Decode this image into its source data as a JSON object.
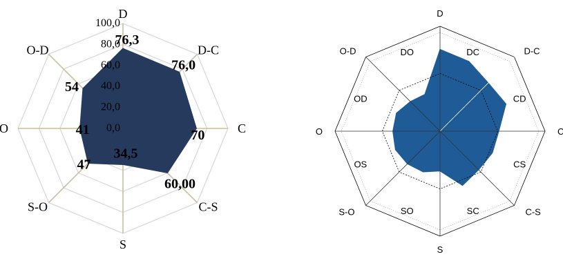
{
  "chart_data": [
    {
      "type": "radar",
      "axes": [
        "D",
        "D-C",
        "C",
        "C-S",
        "S",
        "S-O",
        "O",
        "O-D"
      ],
      "values": [
        76.3,
        76.0,
        70,
        60.0,
        34.5,
        47,
        41,
        54
      ],
      "value_labels": [
        "76,3",
        "76,0",
        "70",
        "60,00",
        "34,5",
        "47",
        "41",
        "54"
      ],
      "rlim": [
        0,
        100
      ],
      "tick_labels": [
        "0,0",
        "20,0",
        "40,0",
        "60,0",
        "80,0",
        "100,0"
      ],
      "grid": true,
      "colors": {
        "fill": "#263a5e",
        "grid": "#d9d9d9",
        "spoke": "#c9bf9a",
        "text": "#000000"
      }
    },
    {
      "type": "radar",
      "axes": [
        "D",
        "D-C",
        "C",
        "C-S",
        "S",
        "S-O",
        "O",
        "O-D"
      ],
      "sector_labels": [
        "DC",
        "CD",
        "CS",
        "SC",
        "SO",
        "OS",
        "OD",
        "DO"
      ],
      "values": [
        78,
        72,
        65,
        68,
        56,
        54,
        52,
        56,
        38,
        42,
        44,
        46,
        45,
        45,
        40,
        38
      ],
      "rlim": [
        0,
        100
      ],
      "grid": true,
      "colors": {
        "fill": "#1f5c97",
        "grid": "#000000",
        "text": "#000000"
      }
    }
  ]
}
